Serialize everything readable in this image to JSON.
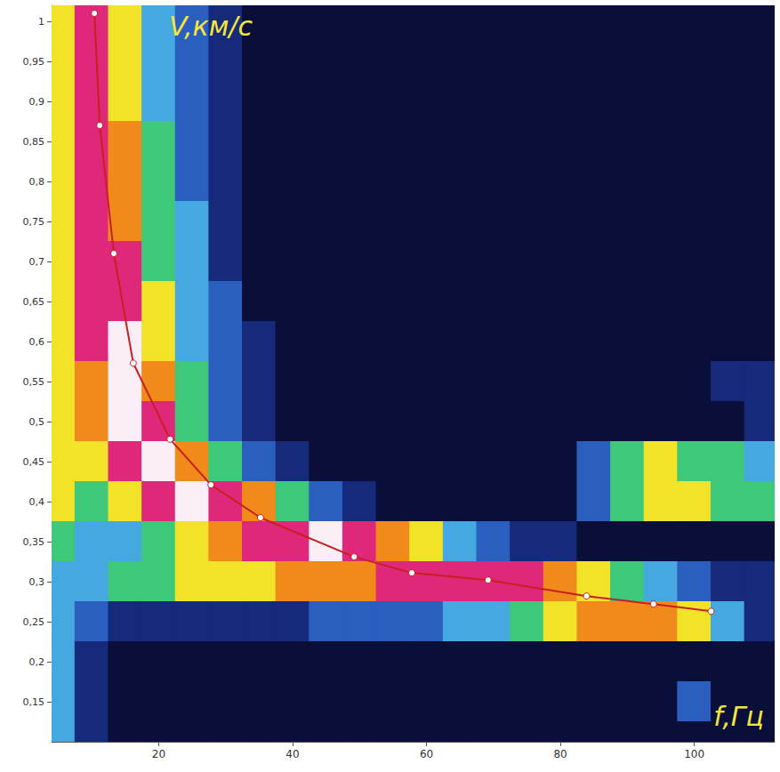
{
  "chart_data": {
    "type": "line",
    "x_label": "f,Гц",
    "y_label": "V,км/с",
    "xlim": [
      4,
      112
    ],
    "xticks": [
      20,
      40,
      60,
      80,
      100
    ],
    "ylim": [
      0.1,
      1.02
    ],
    "yticks": [
      {
        "value": 0.15,
        "label": "0,15"
      },
      {
        "value": 0.2,
        "label": "0,2"
      },
      {
        "value": 0.25,
        "label": "0,25"
      },
      {
        "value": 0.3,
        "label": "0,3"
      },
      {
        "value": 0.35,
        "label": "0,35"
      },
      {
        "value": 0.4,
        "label": "0,4"
      },
      {
        "value": 0.45,
        "label": "0,45"
      },
      {
        "value": 0.5,
        "label": "0,5"
      },
      {
        "value": 0.55,
        "label": "0,55"
      },
      {
        "value": 0.6,
        "label": "0,6"
      },
      {
        "value": 0.65,
        "label": "0,65"
      },
      {
        "value": 0.7,
        "label": "0,7"
      },
      {
        "value": 0.75,
        "label": "0,75"
      },
      {
        "value": 0.8,
        "label": "0,8"
      },
      {
        "value": 0.85,
        "label": "0,85"
      },
      {
        "value": 0.9,
        "label": "0,9"
      },
      {
        "value": 0.95,
        "label": "0,95"
      },
      {
        "value": 1,
        "label": "1"
      }
    ],
    "grid": false,
    "x": [
      10.4,
      11.2,
      13.3,
      16.2,
      21.7,
      27.8,
      35.2,
      49.2,
      57.8,
      69.2,
      83.9,
      93.9,
      102.5
    ],
    "values": [
      1.01,
      0.87,
      0.71,
      0.573,
      0.478,
      0.421,
      0.38,
      0.331,
      0.311,
      0.302,
      0.282,
      0.272,
      0.263
    ],
    "color": "#c8201e",
    "marker": "circle",
    "heatmap": {
      "x": [
        5,
        10,
        15,
        20,
        25,
        30,
        35,
        40,
        45,
        50,
        55,
        60,
        65,
        70,
        75,
        80,
        85,
        90,
        95,
        100,
        105,
        110
      ],
      "y": [
        1,
        0.95,
        0.9,
        0.85,
        0.8,
        0.75,
        0.7,
        0.65,
        0.6,
        0.55,
        0.5,
        0.45,
        0.4,
        0.35,
        0.3,
        0.25,
        0.2,
        0.15,
        0.1
      ],
      "color_range": [
        0,
        9
      ],
      "cells": [
        [
          6,
          8,
          6,
          4,
          3,
          2,
          1,
          1,
          1,
          1,
          1,
          1,
          1,
          1,
          1,
          1,
          1,
          1,
          1,
          1,
          1,
          1
        ],
        [
          6,
          8,
          6,
          4,
          3,
          2,
          1,
          1,
          1,
          1,
          1,
          1,
          1,
          1,
          1,
          1,
          1,
          1,
          1,
          1,
          1,
          1
        ],
        [
          6,
          8,
          6,
          4,
          3,
          2,
          1,
          1,
          1,
          1,
          1,
          1,
          1,
          1,
          1,
          1,
          1,
          1,
          1,
          1,
          1,
          1
        ],
        [
          6,
          8,
          7,
          5,
          3,
          2,
          1,
          1,
          1,
          1,
          1,
          1,
          1,
          1,
          1,
          1,
          1,
          1,
          1,
          1,
          1,
          1
        ],
        [
          6,
          8,
          7,
          5,
          3,
          2,
          1,
          1,
          1,
          1,
          1,
          1,
          1,
          1,
          1,
          1,
          1,
          1,
          1,
          1,
          1,
          1
        ],
        [
          6,
          8,
          7,
          5,
          4,
          2,
          1,
          1,
          1,
          1,
          1,
          1,
          1,
          1,
          1,
          1,
          1,
          1,
          1,
          1,
          1,
          1
        ],
        [
          6,
          8,
          8,
          5,
          4,
          2,
          1,
          1,
          1,
          1,
          1,
          1,
          1,
          1,
          1,
          1,
          1,
          1,
          1,
          1,
          1,
          1
        ],
        [
          6,
          8,
          8,
          6,
          4,
          3,
          1,
          1,
          1,
          1,
          1,
          1,
          1,
          1,
          1,
          1,
          1,
          1,
          1,
          1,
          1,
          1
        ],
        [
          6,
          8,
          9,
          6,
          4,
          3,
          2,
          1,
          1,
          1,
          1,
          1,
          1,
          1,
          1,
          1,
          1,
          1,
          1,
          1,
          1,
          1
        ],
        [
          6,
          7,
          9,
          7,
          5,
          3,
          2,
          1,
          1,
          1,
          1,
          1,
          1,
          1,
          1,
          1,
          1,
          1,
          1,
          1,
          2,
          2
        ],
        [
          6,
          7,
          9,
          8,
          5,
          3,
          2,
          1,
          1,
          1,
          1,
          1,
          1,
          1,
          1,
          1,
          1,
          1,
          1,
          1,
          1,
          2
        ],
        [
          6,
          6,
          8,
          9,
          7,
          5,
          3,
          2,
          1,
          1,
          1,
          1,
          1,
          1,
          1,
          1,
          3,
          5,
          6,
          5,
          5,
          4
        ],
        [
          6,
          5,
          6,
          8,
          9,
          8,
          7,
          5,
          3,
          2,
          1,
          1,
          1,
          1,
          1,
          1,
          3,
          5,
          6,
          6,
          5,
          5
        ],
        [
          5,
          4,
          4,
          5,
          6,
          7,
          8,
          8,
          9,
          8,
          7,
          6,
          4,
          3,
          2,
          2,
          1,
          1,
          1,
          1,
          1,
          1
        ],
        [
          4,
          4,
          5,
          5,
          6,
          6,
          6,
          7,
          7,
          7,
          8,
          8,
          8,
          8,
          8,
          7,
          6,
          5,
          4,
          3,
          2,
          2
        ],
        [
          4,
          3,
          2,
          2,
          2,
          2,
          2,
          2,
          3,
          3,
          3,
          3,
          4,
          4,
          5,
          6,
          7,
          7,
          7,
          6,
          4,
          2
        ],
        [
          4,
          2,
          1,
          1,
          1,
          1,
          1,
          1,
          1,
          1,
          1,
          1,
          1,
          1,
          1,
          1,
          1,
          1,
          1,
          1,
          1,
          1
        ],
        [
          4,
          2,
          1,
          1,
          1,
          1,
          1,
          1,
          1,
          1,
          1,
          1,
          1,
          1,
          1,
          1,
          1,
          1,
          1,
          3,
          1,
          1
        ],
        [
          4,
          2,
          1,
          1,
          1,
          1,
          1,
          1,
          1,
          1,
          1,
          1,
          1,
          1,
          1,
          1,
          1,
          1,
          1,
          1,
          1,
          1
        ]
      ]
    }
  }
}
